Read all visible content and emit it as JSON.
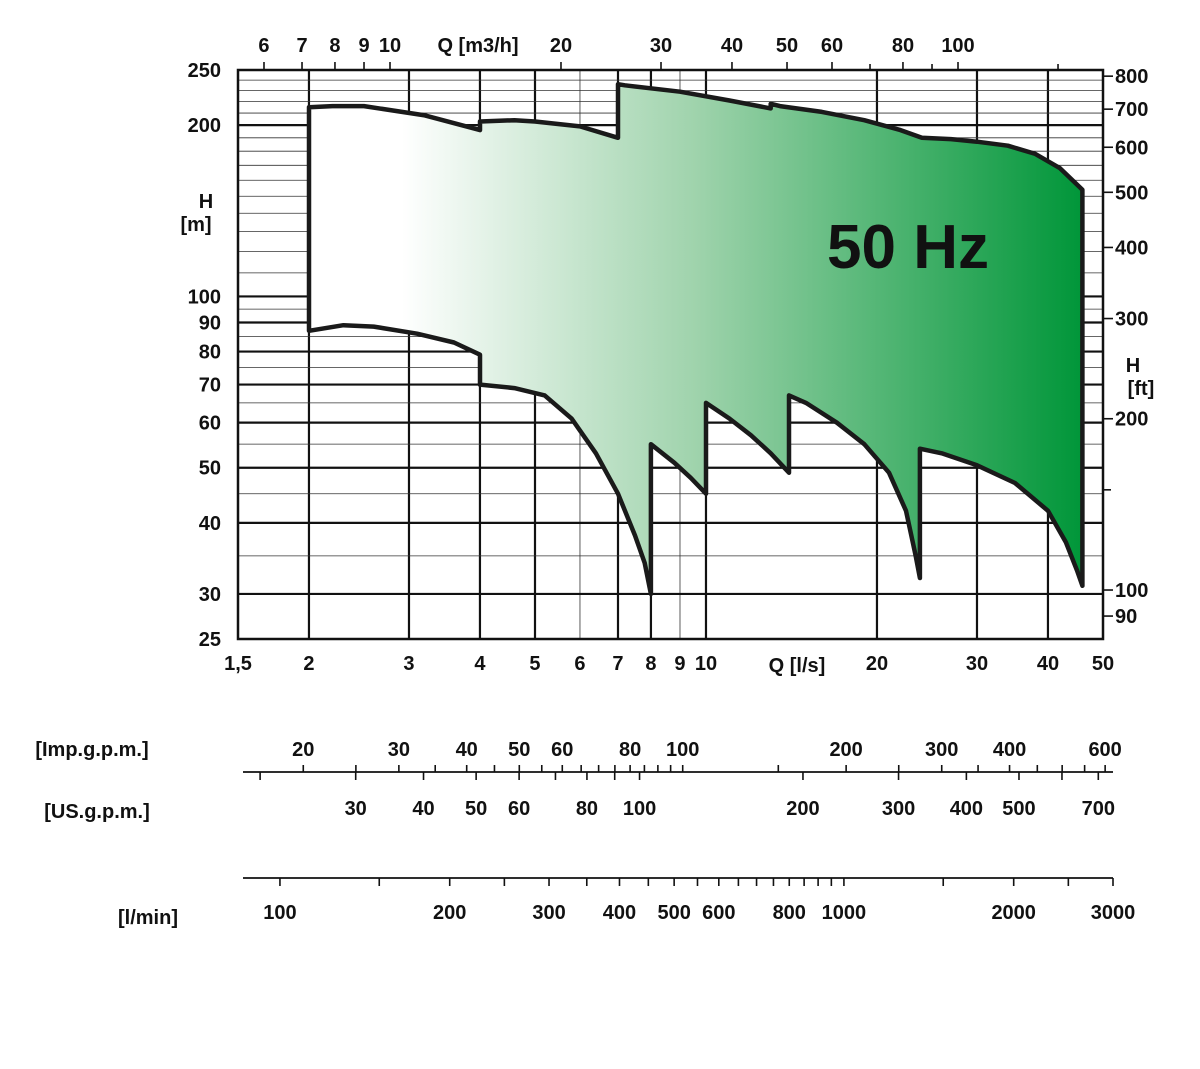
{
  "chart_data": {
    "type": "area",
    "title": "",
    "annotation": "50 Hz",
    "x_unit_label": "Q [l/s]",
    "x_top_unit_label": "Q [m3/h]",
    "y_left_label": [
      "H",
      "[m]"
    ],
    "y_right_label": [
      "H",
      "[ft]"
    ],
    "x_scale": "log",
    "y_scale": "log",
    "xlim": [
      1.5,
      50
    ],
    "ylim": [
      25,
      250
    ],
    "grid": true,
    "x_ticks": [
      {
        "v": 1.5,
        "label": "1,5"
      },
      {
        "v": 2,
        "label": "2"
      },
      {
        "v": 3,
        "label": "3"
      },
      {
        "v": 4,
        "label": "4"
      },
      {
        "v": 5,
        "label": "5"
      },
      {
        "v": 6,
        "label": "6"
      },
      {
        "v": 7,
        "label": "7"
      },
      {
        "v": 8,
        "label": "8"
      },
      {
        "v": 9,
        "label": "9"
      },
      {
        "v": 10,
        "label": "10"
      },
      {
        "v": 20,
        "label": "20"
      },
      {
        "v": 30,
        "label": "30"
      },
      {
        "v": 40,
        "label": "40"
      },
      {
        "v": 50,
        "label": "50"
      }
    ],
    "x_top_ticks": [
      {
        "v": 6,
        "label": "6"
      },
      {
        "v": 7,
        "label": "7"
      },
      {
        "v": 8,
        "label": "8"
      },
      {
        "v": 9,
        "label": "9"
      },
      {
        "v": 10,
        "label": "10"
      },
      {
        "v": 20,
        "label": "20"
      },
      {
        "v": 30,
        "label": "30"
      },
      {
        "v": 40,
        "label": "40"
      },
      {
        "v": 50,
        "label": "50"
      },
      {
        "v": 60,
        "label": "60"
      },
      {
        "v": 80,
        "label": "80"
      },
      {
        "v": 100,
        "label": "100"
      }
    ],
    "x_top_minor": [
      70,
      90,
      150
    ],
    "y_ticks": [
      {
        "v": 25,
        "label": "25"
      },
      {
        "v": 30,
        "label": "30"
      },
      {
        "v": 40,
        "label": "40"
      },
      {
        "v": 50,
        "label": "50"
      },
      {
        "v": 60,
        "label": "60"
      },
      {
        "v": 70,
        "label": "70"
      },
      {
        "v": 80,
        "label": "80"
      },
      {
        "v": 90,
        "label": "90"
      },
      {
        "v": 100,
        "label": "100"
      },
      {
        "v": 200,
        "label": "200"
      },
      {
        "v": 250,
        "label": "250"
      }
    ],
    "y_right_ticks": [
      {
        "v": 90,
        "label": "90"
      },
      {
        "v": 100,
        "label": "100"
      },
      {
        "v": 200,
        "label": "200"
      },
      {
        "v": 300,
        "label": "300"
      },
      {
        "v": 400,
        "label": "400"
      },
      {
        "v": 500,
        "label": "500"
      },
      {
        "v": 600,
        "label": "600"
      },
      {
        "v": 700,
        "label": "700"
      },
      {
        "v": 800,
        "label": "800"
      }
    ],
    "y_right_minor": [
      150
    ],
    "envelope": [
      [
        2.0,
        87
      ],
      [
        2.3,
        89
      ],
      [
        2.6,
        88.5
      ],
      [
        3.1,
        86
      ],
      [
        3.6,
        83
      ],
      [
        4.0,
        79
      ],
      [
        4.0,
        70
      ],
      [
        4.6,
        69
      ],
      [
        5.2,
        67
      ],
      [
        5.8,
        61
      ],
      [
        6.4,
        53
      ],
      [
        7.0,
        45
      ],
      [
        7.5,
        38
      ],
      [
        7.8,
        34
      ],
      [
        8.0,
        30
      ],
      [
        8.0,
        55
      ],
      [
        8.8,
        51
      ],
      [
        9.4,
        48
      ],
      [
        10.0,
        45
      ],
      [
        10.0,
        65
      ],
      [
        11.0,
        61
      ],
      [
        12.0,
        57
      ],
      [
        13.0,
        53
      ],
      [
        14.0,
        49
      ],
      [
        14.0,
        67
      ],
      [
        15.0,
        65
      ],
      [
        17.0,
        60
      ],
      [
        19.0,
        55
      ],
      [
        21.0,
        49
      ],
      [
        22.5,
        42
      ],
      [
        23.4,
        35
      ],
      [
        23.8,
        32
      ],
      [
        23.8,
        54
      ],
      [
        26.0,
        53
      ],
      [
        30.0,
        50.5
      ],
      [
        35.0,
        47
      ],
      [
        40.0,
        42
      ],
      [
        43.0,
        37
      ],
      [
        45.0,
        33
      ],
      [
        46.0,
        31
      ],
      [
        46.0,
        154
      ],
      [
        42.0,
        168
      ],
      [
        38.0,
        178
      ],
      [
        34.0,
        184
      ],
      [
        30.0,
        187
      ],
      [
        27.0,
        189
      ],
      [
        24.0,
        190
      ],
      [
        22.0,
        196
      ],
      [
        19.0,
        204
      ],
      [
        16.0,
        211
      ],
      [
        13.5,
        216
      ],
      [
        13.0,
        218
      ],
      [
        13.0,
        214
      ],
      [
        11.0,
        221
      ],
      [
        9.0,
        229
      ],
      [
        7.2,
        235
      ],
      [
        7.0,
        236
      ],
      [
        7.0,
        190
      ],
      [
        6.0,
        199
      ],
      [
        5.0,
        203
      ],
      [
        4.6,
        204
      ],
      [
        4.0,
        203
      ],
      [
        4.0,
        196
      ],
      [
        3.2,
        208
      ],
      [
        2.5,
        216
      ],
      [
        2.2,
        216
      ],
      [
        2.0,
        215
      ]
    ]
  },
  "flow_scales": [
    {
      "unit_label": "[Imp.g.p.m.]",
      "labels": [
        {
          "v": 20,
          "label": "20"
        },
        {
          "v": 30,
          "label": "30"
        },
        {
          "v": 40,
          "label": "40"
        },
        {
          "v": 50,
          "label": "50"
        },
        {
          "v": 60,
          "label": "60"
        },
        {
          "v": 80,
          "label": "80"
        },
        {
          "v": 100,
          "label": "100"
        },
        {
          "v": 200,
          "label": "200"
        },
        {
          "v": 300,
          "label": "300"
        },
        {
          "v": 400,
          "label": "400"
        },
        {
          "v": 600,
          "label": "600"
        }
      ]
    },
    {
      "unit_label": "[US.g.p.m.]",
      "labels": [
        {
          "v": 30,
          "label": "30"
        },
        {
          "v": 40,
          "label": "40"
        },
        {
          "v": 50,
          "label": "50"
        },
        {
          "v": 60,
          "label": "60"
        },
        {
          "v": 80,
          "label": "80"
        },
        {
          "v": 100,
          "label": "100"
        },
        {
          "v": 200,
          "label": "200"
        },
        {
          "v": 300,
          "label": "300"
        },
        {
          "v": 400,
          "label": "400"
        },
        {
          "v": 500,
          "label": "500"
        },
        {
          "v": 700,
          "label": "700"
        }
      ]
    },
    {
      "unit_label": "[l/min]",
      "labels": [
        {
          "v": 100,
          "label": "100"
        },
        {
          "v": 200,
          "label": "200"
        },
        {
          "v": 300,
          "label": "300"
        },
        {
          "v": 400,
          "label": "400"
        },
        {
          "v": 500,
          "label": "500"
        },
        {
          "v": 600,
          "label": "600"
        },
        {
          "v": 800,
          "label": "800"
        },
        {
          "v": 1000,
          "label": "1000"
        },
        {
          "v": 2000,
          "label": "2000"
        },
        {
          "v": 3000,
          "label": "3000"
        }
      ]
    }
  ],
  "colors": {
    "fill_start": "#ffffff",
    "fill_mid": "#9fd3ac",
    "fill_end": "#009639",
    "outline": "#1a1a1a",
    "grid": "#111111"
  }
}
